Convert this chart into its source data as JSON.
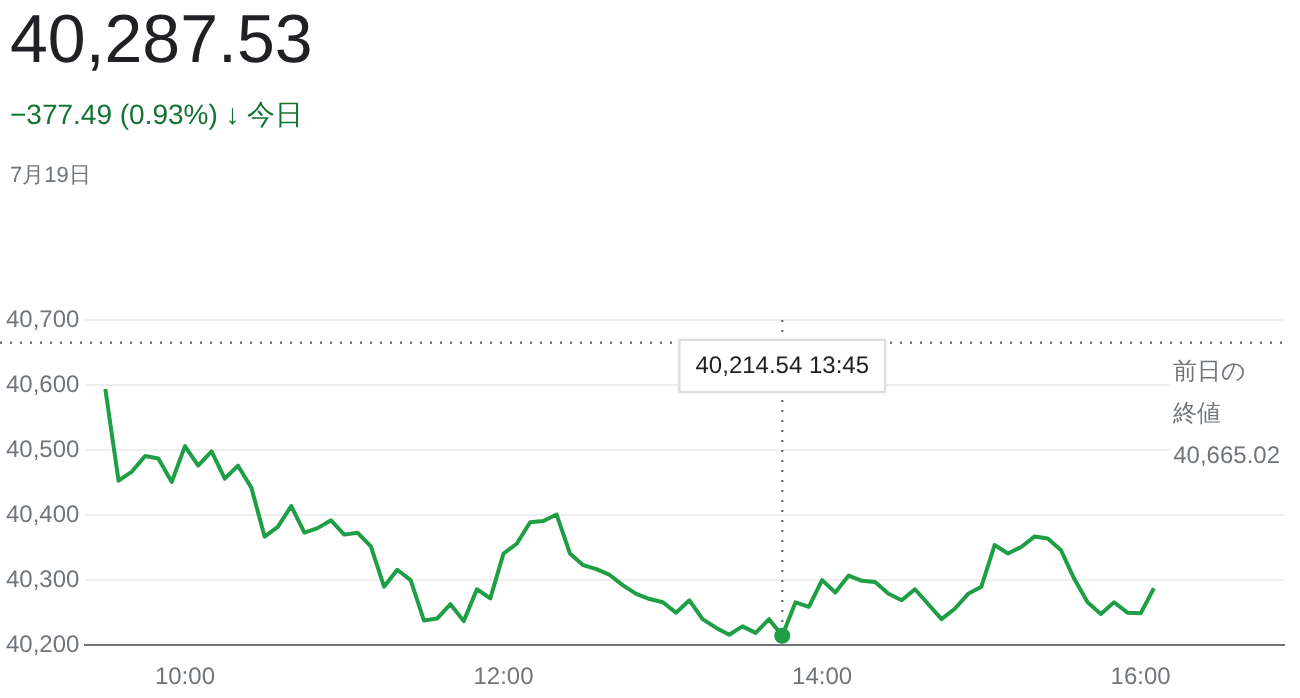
{
  "chart_data": {
    "type": "line",
    "title": "40,287.53",
    "subtitle": "−377.49 (0.93%) ↓ 今日",
    "annotations": [
      "7月19日",
      "40,214.54 13:45"
    ],
    "x": [
      9.5,
      9.583,
      9.667,
      9.75,
      9.833,
      9.917,
      10,
      10.083,
      10.167,
      10.25,
      10.333,
      10.417,
      10.5,
      10.583,
      10.667,
      10.75,
      10.833,
      10.917,
      11,
      11.083,
      11.167,
      11.25,
      11.333,
      11.417,
      11.5,
      11.583,
      11.667,
      11.75,
      11.833,
      11.917,
      12,
      12.083,
      12.167,
      12.25,
      12.333,
      12.417,
      12.5,
      12.583,
      12.667,
      12.75,
      12.833,
      12.917,
      13,
      13.083,
      13.167,
      13.25,
      13.333,
      13.417,
      13.5,
      13.583,
      13.667,
      13.75,
      13.833,
      13.917,
      14,
      14.083,
      14.167,
      14.25,
      14.333,
      14.417,
      14.5,
      14.583,
      14.667,
      14.75,
      14.833,
      14.917,
      15,
      15.083,
      15.167,
      15.25,
      15.333,
      15.417,
      15.5,
      15.583,
      15.667,
      15.75,
      15.833,
      15.917,
      16,
      16.083
    ],
    "series": [
      {
        "color": "#1e9e45",
        "values": [
          40594,
          40453,
          40467,
          40491,
          40487,
          40451,
          40506,
          40476,
          40498,
          40456,
          40476,
          40442,
          40367,
          40382,
          40414,
          40373,
          40380,
          40392,
          40370,
          40373,
          40352,
          40290,
          40316,
          40300,
          40238,
          40241,
          40263,
          40237,
          40286,
          40272,
          40341,
          40356,
          40389,
          40391,
          40401,
          40341,
          40323,
          40317,
          40308,
          40292,
          40279,
          40271,
          40266,
          40250,
          40269,
          40240,
          40227,
          40216,
          40229,
          40219,
          40240,
          40214.54,
          40266,
          40259,
          40300,
          40281,
          40307,
          40299,
          40297,
          40279,
          40269,
          40286,
          40263,
          40240,
          40256,
          40279,
          40290,
          40354,
          40341,
          40351,
          40367,
          40364,
          40346,
          40302,
          40266,
          40248,
          40266,
          40250,
          40249,
          40287.53
        ]
      }
    ],
    "xlim": [
      9.375,
      16.9
    ],
    "xticks": [
      {
        "value": 10,
        "label": "10:00"
      },
      {
        "value": 12,
        "label": "12:00"
      },
      {
        "value": 14,
        "label": "14:00"
      },
      {
        "value": 16,
        "label": "16:00"
      }
    ],
    "ylim": [
      40200,
      40700
    ],
    "yticks": [
      {
        "value": 40200,
        "label": "40,200"
      },
      {
        "value": 40300,
        "label": "40,300"
      },
      {
        "value": 40400,
        "label": "40,400"
      },
      {
        "value": 40500,
        "label": "40,500"
      },
      {
        "value": 40600,
        "label": "40,600"
      },
      {
        "value": 40700,
        "label": "40,700"
      }
    ],
    "ref_lines": [
      {
        "axis": "y",
        "value": 40665.02,
        "label": "前日の終値40,665.02",
        "color": "#70757a",
        "line_style": "dotted"
      },
      {
        "axis": "x",
        "value": 13.75,
        "color": "#70757a",
        "line_style": "dotted"
      }
    ],
    "grid": "y",
    "legend": false,
    "marker": "none",
    "line_style": "solid"
  }
}
